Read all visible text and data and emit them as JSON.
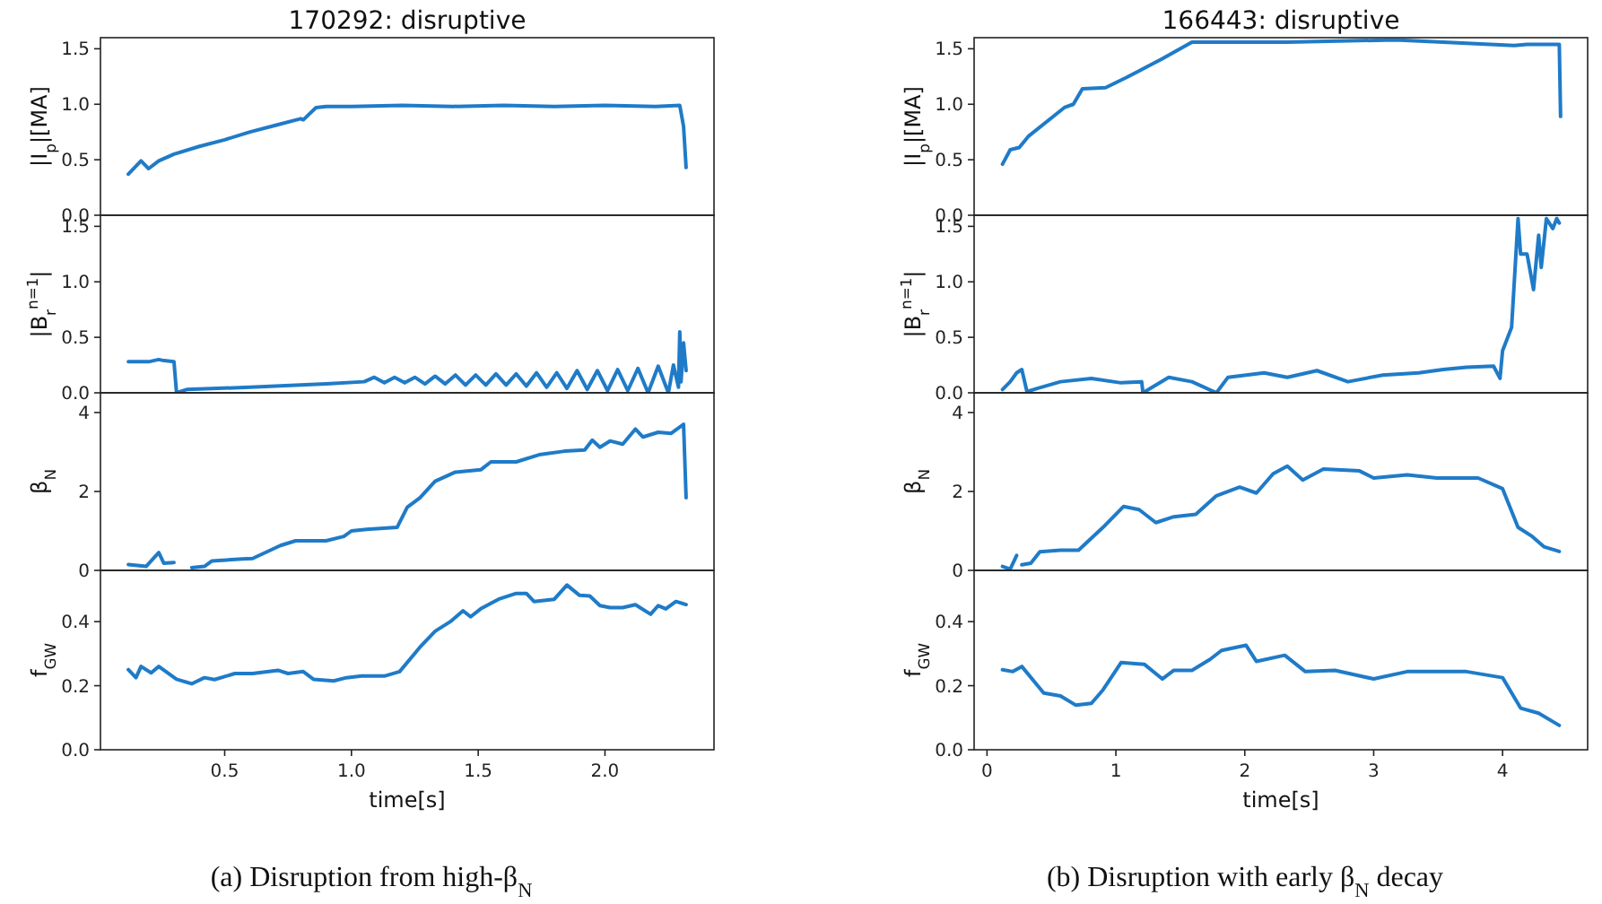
{
  "chart_data": [
    {
      "type": "line",
      "title": "170292: disruptive",
      "ylabel": "|I$_{p}$|[MA]",
      "xlim": [
        0.01,
        2.43
      ],
      "ylim": [
        0,
        1.6
      ],
      "yticks": [
        {
          "value": 0,
          "label": "0.0"
        },
        {
          "value": 0.5,
          "label": "0.5"
        },
        {
          "value": 1,
          "label": "1.0"
        },
        {
          "value": 1.5,
          "label": "1.5"
        }
      ],
      "tick_labels": "y",
      "series": [
        {
          "color": "#1f7bc8",
          "x": [
            0.12,
            0.17,
            0.2,
            0.24,
            0.3,
            0.4,
            0.5,
            0.6,
            0.7,
            0.8,
            0.81,
            0.86,
            0.9,
            1.0,
            1.2,
            1.4,
            1.6,
            1.8,
            2.0,
            2.2,
            2.295,
            2.31,
            2.32
          ],
          "values": [
            0.37,
            0.49,
            0.42,
            0.49,
            0.55,
            0.62,
            0.68,
            0.75,
            0.81,
            0.87,
            0.86,
            0.97,
            0.98,
            0.98,
            0.99,
            0.98,
            0.99,
            0.98,
            0.99,
            0.98,
            0.99,
            0.8,
            0.43
          ]
        }
      ]
    },
    {
      "type": "line",
      "ylabel": "|B$_{r}$$^{n=1}$|",
      "xlim": [
        0.01,
        2.43
      ],
      "ylim": [
        0,
        1.6
      ],
      "yticks": [
        {
          "value": 0,
          "label": "0.0"
        },
        {
          "value": 0.5,
          "label": "0.5"
        },
        {
          "value": 1,
          "label": "1.0"
        },
        {
          "value": 1.5,
          "label": "1.5"
        }
      ],
      "tick_labels": "y",
      "series": [
        {
          "color": "#1f7bc8",
          "x": [
            0.12,
            0.2,
            0.24,
            0.26,
            0.3,
            0.31,
            0.35,
            0.6,
            0.9,
            1.05,
            1.09,
            1.13,
            1.17,
            1.21,
            1.25,
            1.29,
            1.33,
            1.37,
            1.41,
            1.45,
            1.49,
            1.53,
            1.57,
            1.61,
            1.65,
            1.69,
            1.73,
            1.77,
            1.81,
            1.85,
            1.89,
            1.93,
            1.97,
            2.01,
            2.05,
            2.09,
            2.13,
            2.17,
            2.21,
            2.25,
            2.27,
            2.29,
            2.295,
            2.3,
            2.31,
            2.32
          ],
          "values": [
            0.28,
            0.28,
            0.3,
            0.29,
            0.28,
            0.0,
            0.03,
            0.05,
            0.08,
            0.1,
            0.14,
            0.09,
            0.14,
            0.09,
            0.14,
            0.08,
            0.15,
            0.08,
            0.16,
            0.07,
            0.16,
            0.07,
            0.17,
            0.07,
            0.17,
            0.06,
            0.18,
            0.05,
            0.18,
            0.04,
            0.2,
            0.03,
            0.2,
            0.02,
            0.21,
            0.02,
            0.22,
            0.0,
            0.24,
            0.0,
            0.25,
            0.05,
            0.55,
            0.1,
            0.45,
            0.2
          ]
        }
      ]
    },
    {
      "type": "line",
      "ylabel": "β$_{N}$",
      "xlim": [
        0.01,
        2.43
      ],
      "ylim": [
        0,
        4.5
      ],
      "yticks": [
        0,
        2,
        4
      ],
      "tick_labels": "y",
      "series": [
        {
          "color": "#1f7bc8",
          "x": [
            0.12,
            0.19,
            0.24,
            0.26,
            0.3,
            0.33,
            0.37,
            0.42,
            0.45,
            0.57,
            0.61,
            0.72,
            0.78,
            0.9,
            0.97,
            1.0,
            1.06,
            1.18,
            1.22,
            1.27,
            1.33,
            1.41,
            1.51,
            1.55,
            1.65,
            1.74,
            1.84,
            1.92,
            1.95,
            1.98,
            2.02,
            2.07,
            2.12,
            2.15,
            2.21,
            2.26,
            2.31,
            2.32
          ],
          "values": [
            0.15,
            0.1,
            0.45,
            0.18,
            0.2,
            null,
            0.07,
            0.1,
            0.24,
            0.29,
            0.3,
            0.63,
            0.75,
            0.75,
            0.86,
            1.0,
            1.04,
            1.09,
            1.6,
            1.84,
            2.26,
            2.49,
            2.55,
            2.75,
            2.75,
            2.93,
            3.02,
            3.05,
            3.3,
            3.12,
            3.28,
            3.2,
            3.58,
            3.38,
            3.5,
            3.47,
            3.7,
            1.84
          ]
        }
      ]
    },
    {
      "type": "line",
      "ylabel": "f$_{GW}$",
      "xlabel": "time[s]",
      "annotations": [
        "(a) Disruption from high-β$_{N}$"
      ],
      "xlim": [
        0.01,
        2.43
      ],
      "ylim": [
        0,
        0.56
      ],
      "xticks": [
        {
          "value": 0.5,
          "label": "0.5"
        },
        {
          "value": 1,
          "label": "1.0"
        },
        {
          "value": 1.5,
          "label": "1.5"
        },
        {
          "value": 2,
          "label": "2.0"
        }
      ],
      "yticks": [
        {
          "value": 0,
          "label": "0.0"
        },
        {
          "value": 0.2,
          "label": "0.2"
        },
        {
          "value": 0.4,
          "label": "0.4"
        }
      ],
      "series": [
        {
          "color": "#1f7bc8",
          "x": [
            0.12,
            0.15,
            0.17,
            0.21,
            0.24,
            0.31,
            0.37,
            0.42,
            0.46,
            0.54,
            0.61,
            0.71,
            0.75,
            0.81,
            0.85,
            0.93,
            0.98,
            1.04,
            1.13,
            1.19,
            1.27,
            1.33,
            1.39,
            1.44,
            1.47,
            1.51,
            1.58,
            1.65,
            1.69,
            1.72,
            1.8,
            1.85,
            1.9,
            1.94,
            1.98,
            2.02,
            2.07,
            2.12,
            2.18,
            2.21,
            2.24,
            2.28,
            2.32
          ],
          "values": [
            0.25,
            0.225,
            0.26,
            0.24,
            0.26,
            0.22,
            0.206,
            0.225,
            0.219,
            0.238,
            0.238,
            0.248,
            0.238,
            0.244,
            0.22,
            0.215,
            0.225,
            0.23,
            0.23,
            0.244,
            0.32,
            0.37,
            0.4,
            0.434,
            0.415,
            0.44,
            0.47,
            0.488,
            0.488,
            0.463,
            0.47,
            0.514,
            0.482,
            0.48,
            0.45,
            0.444,
            0.444,
            0.453,
            0.423,
            0.45,
            0.44,
            0.463,
            0.453
          ]
        }
      ]
    },
    {
      "type": "line",
      "title": "166443: disruptive",
      "ylabel": "|I$_{p}$|[MA]",
      "xlim": [
        -0.1,
        4.66
      ],
      "ylim": [
        0,
        1.6
      ],
      "yticks": [
        {
          "value": 0,
          "label": "0.0"
        },
        {
          "value": 0.5,
          "label": "0.5"
        },
        {
          "value": 1,
          "label": "1.0"
        },
        {
          "value": 1.5,
          "label": "1.5"
        }
      ],
      "tick_labels": "y",
      "series": [
        {
          "color": "#1f7bc8",
          "x": [
            0.12,
            0.18,
            0.25,
            0.32,
            0.6,
            0.67,
            0.74,
            0.92,
            1.08,
            1.36,
            1.59,
            2.33,
            3.17,
            4.09,
            4.19,
            4.44,
            4.45
          ],
          "values": [
            0.46,
            0.59,
            0.61,
            0.71,
            0.97,
            1.0,
            1.14,
            1.15,
            1.24,
            1.41,
            1.56,
            1.56,
            1.58,
            1.53,
            1.54,
            1.54,
            0.89
          ]
        }
      ]
    },
    {
      "type": "line",
      "ylabel": "|B$_{r}$$^{n=1}$|",
      "xlim": [
        -0.1,
        4.66
      ],
      "ylim": [
        0,
        1.6
      ],
      "yticks": [
        {
          "value": 0,
          "label": "0.0"
        },
        {
          "value": 0.5,
          "label": "0.5"
        },
        {
          "value": 1,
          "label": "1.0"
        },
        {
          "value": 1.5,
          "label": "1.5"
        }
      ],
      "tick_labels": "y",
      "series": [
        {
          "color": "#1f7bc8",
          "x": [
            0.12,
            0.18,
            0.23,
            0.27,
            0.31,
            0.39,
            0.57,
            0.81,
            1.04,
            1.2,
            1.21,
            1.41,
            1.59,
            1.78,
            1.87,
            2.15,
            2.33,
            2.56,
            2.8,
            3.07,
            3.35,
            3.54,
            3.72,
            3.93,
            3.98,
            4.0,
            4.07,
            4.12,
            4.14,
            4.19,
            4.24,
            4.28,
            4.3,
            4.34,
            4.39,
            4.42,
            4.44
          ],
          "values": [
            0.03,
            0.1,
            0.18,
            0.21,
            0.01,
            0.04,
            0.1,
            0.13,
            0.09,
            0.1,
            0.0,
            0.14,
            0.1,
            0.0,
            0.14,
            0.18,
            0.14,
            0.2,
            0.1,
            0.16,
            0.18,
            0.21,
            0.23,
            0.24,
            0.13,
            0.38,
            0.59,
            1.57,
            1.25,
            1.25,
            0.93,
            1.42,
            1.13,
            1.57,
            1.48,
            1.57,
            1.53
          ]
        }
      ]
    },
    {
      "type": "line",
      "ylabel": "β$_{N}$",
      "xlim": [
        -0.1,
        4.66
      ],
      "ylim": [
        0,
        4.5
      ],
      "yticks": [
        0,
        2,
        4
      ],
      "tick_labels": "y",
      "series": [
        {
          "color": "#1f7bc8",
          "x": [
            0.12,
            0.18,
            0.23,
            0.25,
            0.27,
            0.34,
            0.41,
            0.57,
            0.71,
            0.9,
            1.06,
            1.18,
            1.31,
            1.45,
            1.62,
            1.78,
            1.96,
            2.09,
            2.22,
            2.33,
            2.45,
            2.61,
            2.89,
            3.0,
            3.26,
            3.49,
            3.81,
            4.0,
            4.12,
            4.23,
            4.32,
            4.44
          ],
          "values": [
            0.1,
            0.03,
            0.38,
            null,
            0.14,
            0.18,
            0.47,
            0.51,
            0.51,
            1.09,
            1.62,
            1.54,
            1.21,
            1.36,
            1.42,
            1.89,
            2.11,
            1.96,
            2.45,
            2.64,
            2.29,
            2.57,
            2.52,
            2.34,
            2.42,
            2.34,
            2.34,
            2.07,
            1.09,
            0.86,
            0.6,
            0.48
          ]
        }
      ]
    },
    {
      "type": "line",
      "ylabel": "f$_{GW}$",
      "xlabel": "time[s]",
      "annotations": [
        "(b) Disruption with early β$_{N}$ decay"
      ],
      "xlim": [
        -0.1,
        4.66
      ],
      "ylim": [
        0,
        0.56
      ],
      "xticks": [
        0,
        1,
        2,
        3,
        4
      ],
      "yticks": [
        {
          "value": 0,
          "label": "0.0"
        },
        {
          "value": 0.2,
          "label": "0.2"
        },
        {
          "value": 0.4,
          "label": "0.4"
        }
      ],
      "series": [
        {
          "color": "#1f7bc8",
          "x": [
            0.12,
            0.2,
            0.27,
            0.44,
            0.57,
            0.69,
            0.81,
            0.9,
            1.04,
            1.22,
            1.36,
            1.45,
            1.59,
            1.73,
            1.82,
            2.01,
            2.09,
            2.31,
            2.47,
            2.7,
            3.0,
            3.26,
            3.72,
            4.0,
            4.14,
            4.28,
            4.44
          ],
          "values": [
            0.25,
            0.244,
            0.26,
            0.177,
            0.168,
            0.139,
            0.145,
            0.187,
            0.272,
            0.267,
            0.221,
            0.248,
            0.248,
            0.282,
            0.31,
            0.326,
            0.276,
            0.295,
            0.244,
            0.248,
            0.221,
            0.244,
            0.244,
            0.225,
            0.13,
            0.114,
            0.076
          ]
        }
      ]
    }
  ]
}
